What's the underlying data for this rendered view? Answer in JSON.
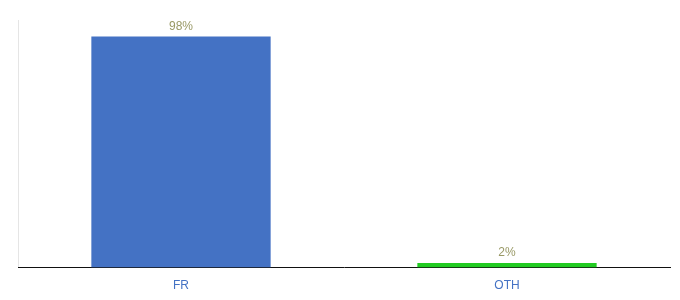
{
  "chart_data": {
    "type": "bar",
    "categories": [
      "FR",
      "OTH"
    ],
    "values": [
      98,
      2
    ],
    "value_labels": [
      "98%",
      "2%"
    ],
    "colors": [
      "#4472c4",
      "#22cc22"
    ],
    "ylim": [
      0,
      105
    ],
    "grid": false,
    "data_labels": true,
    "tick_labels": "x"
  }
}
